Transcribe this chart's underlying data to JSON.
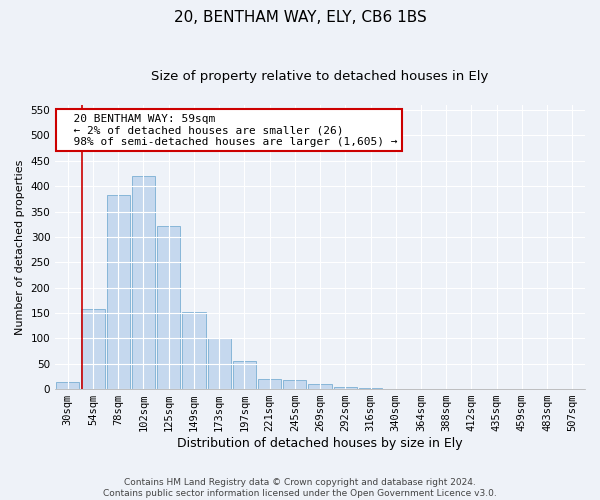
{
  "title": "20, BENTHAM WAY, ELY, CB6 1BS",
  "subtitle": "Size of property relative to detached houses in Ely",
  "xlabel": "Distribution of detached houses by size in Ely",
  "ylabel": "Number of detached properties",
  "categories": [
    "30sqm",
    "54sqm",
    "78sqm",
    "102sqm",
    "125sqm",
    "149sqm",
    "173sqm",
    "197sqm",
    "221sqm",
    "245sqm",
    "269sqm",
    "292sqm",
    "316sqm",
    "340sqm",
    "364sqm",
    "388sqm",
    "412sqm",
    "435sqm",
    "459sqm",
    "483sqm",
    "507sqm"
  ],
  "values": [
    13,
    157,
    382,
    420,
    322,
    152,
    100,
    55,
    20,
    18,
    10,
    5,
    2,
    1,
    0,
    1,
    0,
    0,
    1,
    0,
    1
  ],
  "bar_color": "#c5d8ee",
  "bar_edge_color": "#7aafd4",
  "annotation_line_label": "20 BENTHAM WAY: 59sqm",
  "annotation_text_line2": "← 2% of detached houses are smaller (26)",
  "annotation_text_line3": "98% of semi-detached houses are larger (1,605) →",
  "annotation_box_color": "#ffffff",
  "annotation_box_edge_color": "#cc0000",
  "vline_color": "#cc0000",
  "title_fontsize": 11,
  "subtitle_fontsize": 9.5,
  "xlabel_fontsize": 9,
  "ylabel_fontsize": 8,
  "tick_fontsize": 7.5,
  "annot_fontsize": 8,
  "footer_text": "Contains HM Land Registry data © Crown copyright and database right 2024.\nContains public sector information licensed under the Open Government Licence v3.0.",
  "ylim": [
    0,
    560
  ],
  "yticks": [
    0,
    50,
    100,
    150,
    200,
    250,
    300,
    350,
    400,
    450,
    500,
    550
  ],
  "background_color": "#eef2f8",
  "grid_color": "#ffffff",
  "vline_x_index": 0.58
}
